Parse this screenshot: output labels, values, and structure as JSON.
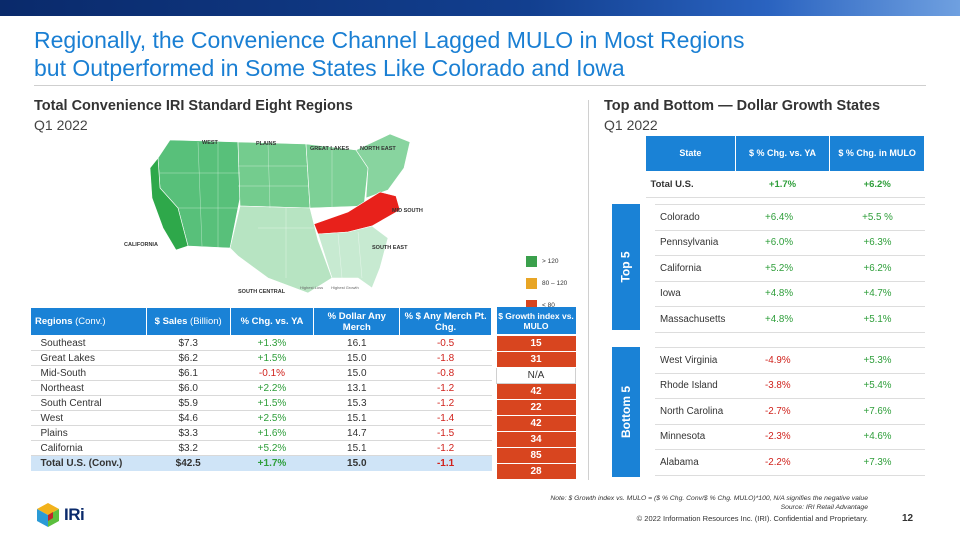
{
  "header": {
    "title_line1": "Regionally, the Convenience Channel Lagged MULO in Most Regions",
    "title_line2": "but Outperformed in Some States Like Colorado and Iowa"
  },
  "left": {
    "heading": "Total Convenience IRI Standard Eight Regions",
    "period": "Q1 2022",
    "map_labels": {
      "west": "WEST",
      "plains": "PLAINS",
      "great_lakes": "GREAT LAKES",
      "north_east": "NORTH EAST",
      "mid_south": "MID SOUTH",
      "south_east": "SOUTH EAST",
      "california": "CALIFORNIA",
      "south_central": "SOUTH CENTRAL"
    },
    "map_notes": {
      "lowest": "Highest Loss",
      "highest": "Highest Growth"
    },
    "legend": [
      {
        "label": "> 120",
        "color": "#3aa04c"
      },
      {
        "label": "80 – 120",
        "color": "#e8a525"
      },
      {
        "label": "< 80",
        "color": "#d8451f"
      }
    ],
    "table": {
      "headers": {
        "regions": "Regions",
        "regions_unit": "(Conv.)",
        "sales": "$ Sales",
        "sales_unit": "(Billion)",
        "chg": "% Chg. vs. YA",
        "dollar_merch": "% Dollar Any Merch",
        "pt_chg": "% $ Any Merch Pt. Chg.",
        "growth_index": "$ Growth index vs. MULO"
      },
      "rows": [
        {
          "region": "Southeast",
          "sales": "$7.3",
          "chg": "+1.3%",
          "merch": "16.1",
          "pt": "-0.5",
          "gi": "15"
        },
        {
          "region": "Great Lakes",
          "sales": "$6.2",
          "chg": "+1.5%",
          "merch": "15.0",
          "pt": "-1.8",
          "gi": "31"
        },
        {
          "region": "Mid-South",
          "sales": "$6.1",
          "chg": "-0.1%",
          "merch": "15.0",
          "pt": "-0.8",
          "gi": "N/A"
        },
        {
          "region": "Northeast",
          "sales": "$6.0",
          "chg": "+2.2%",
          "merch": "13.1",
          "pt": "-1.2",
          "gi": "42"
        },
        {
          "region": "South Central",
          "sales": "$5.9",
          "chg": "+1.5%",
          "merch": "15.3",
          "pt": "-1.2",
          "gi": "22"
        },
        {
          "region": "West",
          "sales": "$4.6",
          "chg": "+2.5%",
          "merch": "15.1",
          "pt": "-1.4",
          "gi": "42"
        },
        {
          "region": "Plains",
          "sales": "$3.3",
          "chg": "+1.6%",
          "merch": "14.7",
          "pt": "-1.5",
          "gi": "34"
        },
        {
          "region": "California",
          "sales": "$3.2",
          "chg": "+5.2%",
          "merch": "15.1",
          "pt": "-1.2",
          "gi": "85"
        }
      ],
      "total": {
        "region": "Total U.S. (Conv.)",
        "sales": "$42.5",
        "chg": "+1.7%",
        "merch": "15.0",
        "pt": "-1.1",
        "gi": "28"
      }
    }
  },
  "right": {
    "heading": "Top and Bottom — Dollar Growth States",
    "period": "Q1 2022",
    "headers": {
      "state": "State",
      "chg_ya": "$ % Chg. vs. YA",
      "chg_mulo": "$ % Chg. in MULO"
    },
    "total": {
      "state": "Total U.S.",
      "chg_ya": "+1.7%",
      "chg_mulo": "+6.2%"
    },
    "top_label": "Top 5",
    "top5": [
      {
        "state": "Colorado",
        "chg_ya": "+6.4%",
        "chg_mulo": "+5.5 %"
      },
      {
        "state": "Pennsylvania",
        "chg_ya": "+6.0%",
        "chg_mulo": "+6.3%"
      },
      {
        "state": "California",
        "chg_ya": "+5.2%",
        "chg_mulo": "+6.2%"
      },
      {
        "state": "Iowa",
        "chg_ya": "+4.8%",
        "chg_mulo": "+4.7%"
      },
      {
        "state": "Massachusetts",
        "chg_ya": "+4.8%",
        "chg_mulo": "+5.1%"
      }
    ],
    "bottom_label": "Bottom 5",
    "bottom5": [
      {
        "state": "West Virginia",
        "chg_ya": "-4.9%",
        "chg_mulo": "+5.3%"
      },
      {
        "state": "Rhode Island",
        "chg_ya": "-3.8%",
        "chg_mulo": "+5.4%"
      },
      {
        "state": "North Carolina",
        "chg_ya": "-2.7%",
        "chg_mulo": "+7.6%"
      },
      {
        "state": "Minnesota",
        "chg_ya": "-2.3%",
        "chg_mulo": "+4.6%"
      },
      {
        "state": "Alabama",
        "chg_ya": "-2.2%",
        "chg_mulo": "+7.3%"
      }
    ]
  },
  "footer": {
    "note": "Note: $ Growth index vs. MULO =  ($ % Chg. Conv/$ % Chg. MULO)*100, N/A signifies the negative value",
    "source": "Source: IRI Retail Advantage",
    "copyright": "© 2022 Information Resources Inc. (IRI). Confidential and Proprietary.",
    "page": "12",
    "logo_text": "IRi"
  },
  "colors": {
    "accent": "#1a82d6",
    "title": "#1a7fd3",
    "positive": "#2e9e3a",
    "negative": "#d0221c",
    "index_cell": "#d8451f"
  }
}
